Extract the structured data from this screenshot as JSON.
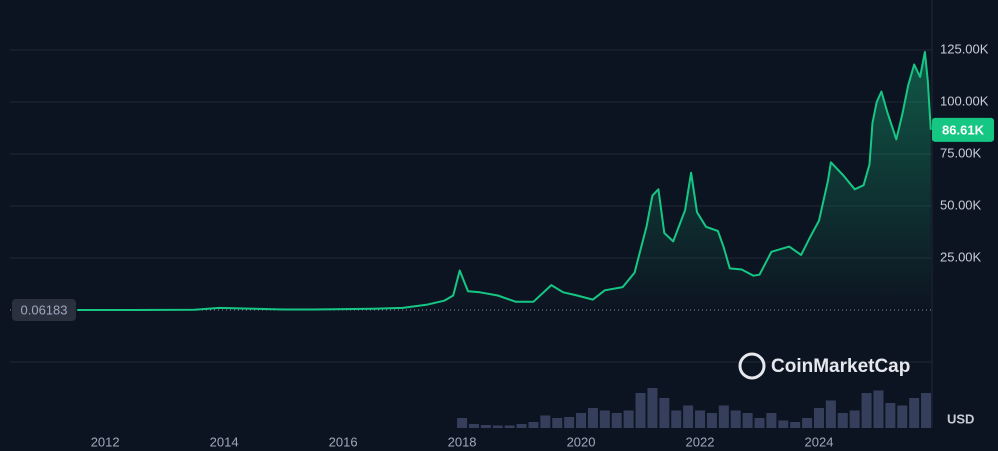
{
  "chart_data": {
    "type": "line",
    "x": [
      2011.53,
      2012.5,
      2013.5,
      2013.92,
      2014.5,
      2015.0,
      2015.5,
      2016.0,
      2016.5,
      2017.0,
      2017.4,
      2017.7,
      2017.85,
      2017.96,
      2018.1,
      2018.3,
      2018.6,
      2018.9,
      2019.2,
      2019.5,
      2019.7,
      2019.9,
      2020.2,
      2020.4,
      2020.7,
      2020.9,
      2021.0,
      2021.1,
      2021.2,
      2021.3,
      2021.4,
      2021.55,
      2021.75,
      2021.85,
      2021.95,
      2022.1,
      2022.3,
      2022.4,
      2022.5,
      2022.7,
      2022.9,
      2023.0,
      2023.2,
      2023.5,
      2023.7,
      2023.85,
      2024.0,
      2024.15,
      2024.2,
      2024.4,
      2024.6,
      2024.75,
      2024.85,
      2024.9,
      2024.97,
      2025.05,
      2025.15,
      2025.3,
      2025.4,
      2025.5,
      2025.6,
      2025.7,
      2025.78,
      2025.83,
      2025.88
    ],
    "values": [
      0.06183,
      7,
      100,
      1000,
      600,
      250,
      250,
      430,
      650,
      1000,
      2500,
      4500,
      7000,
      19000,
      9000,
      8500,
      7000,
      4000,
      4000,
      12000,
      8500,
      7200,
      5000,
      9500,
      11000,
      18000,
      29000,
      40000,
      55000,
      58000,
      37000,
      33000,
      48000,
      66000,
      47000,
      40000,
      38000,
      30000,
      20000,
      19500,
      16500,
      17000,
      28000,
      30500,
      26500,
      35000,
      43000,
      62000,
      71000,
      65000,
      58000,
      60000,
      70000,
      90000,
      100000,
      105000,
      95000,
      82000,
      94000,
      108000,
      118000,
      112000,
      124000,
      110000,
      86610
    ],
    "color": "#16c784",
    "xlim": [
      2010.4,
      2025.9
    ],
    "xticks": [
      2012,
      2014,
      2016,
      2018,
      2020,
      2022,
      2024
    ],
    "ylim": [
      -56700,
      149000
    ],
    "yticks": [
      {
        "value": 25000,
        "label": "25.00K"
      },
      {
        "value": 50000,
        "label": "50.00K"
      },
      {
        "value": 75000,
        "label": "75.00K"
      },
      {
        "value": 100000,
        "label": "100.00K"
      },
      {
        "value": 125000,
        "label": "125.00K"
      }
    ],
    "grid": true,
    "end_label": "86.61K",
    "unit": "USD",
    "watermark": "CoinMarketCap",
    "volume": {
      "x": [
        2018.0,
        2018.2,
        2018.4,
        2018.6,
        2018.8,
        2019.0,
        2019.2,
        2019.4,
        2019.6,
        2019.8,
        2020.0,
        2020.2,
        2020.4,
        2020.6,
        2020.8,
        2021.0,
        2021.2,
        2021.4,
        2021.6,
        2021.8,
        2022.0,
        2022.2,
        2022.4,
        2022.6,
        2022.8,
        2023.0,
        2023.2,
        2023.4,
        2023.6,
        2023.8,
        2024.0,
        2024.2,
        2024.4,
        2024.6,
        2024.8,
        2025.0,
        2025.2,
        2025.4,
        2025.6,
        2025.8
      ],
      "values": [
        20,
        8,
        6,
        5,
        5,
        8,
        12,
        25,
        20,
        22,
        30,
        40,
        35,
        30,
        35,
        70,
        80,
        60,
        35,
        45,
        35,
        30,
        45,
        35,
        30,
        20,
        30,
        15,
        12,
        20,
        40,
        55,
        30,
        35,
        70,
        75,
        50,
        45,
        60,
        70
      ],
      "ylim": [
        0,
        150
      ],
      "color": "#3d4766"
    }
  }
}
